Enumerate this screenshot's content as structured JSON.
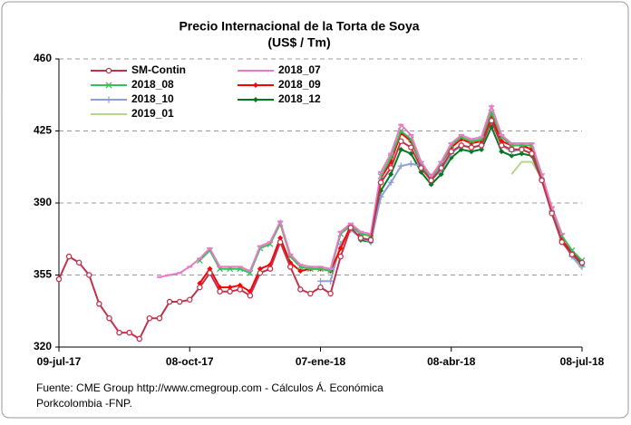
{
  "chart_data": {
    "type": "line",
    "title": "Precio Internacional de la Torta de Soya",
    "subtitle": "(US$ / Tm)",
    "source": [
      "Fuente: CME  Group http://www.cmegroup.com - Cálculos Á. Económica",
      "Porkcolombia  -FNP."
    ],
    "categories": [
      "09-jul-17",
      null,
      null,
      null,
      null,
      null,
      null,
      null,
      null,
      null,
      null,
      null,
      null,
      "08-oct-17",
      null,
      null,
      null,
      null,
      null,
      null,
      null,
      null,
      null,
      null,
      null,
      null,
      "07-ene-18",
      null,
      null,
      null,
      null,
      null,
      null,
      null,
      null,
      null,
      null,
      null,
      null,
      "08-abr-18",
      null,
      null,
      null,
      null,
      null,
      null,
      null,
      null,
      null,
      null,
      null,
      null,
      "08-jul-18"
    ],
    "ylim": [
      320,
      460
    ],
    "yticks": [
      320,
      355,
      390,
      425,
      460
    ],
    "grid": true,
    "legend": "top-left",
    "series": [
      {
        "name": "SM-Contin",
        "color": "#c0334a",
        "marker": "circle",
        "values": [
          353,
          364,
          361,
          355,
          341,
          334,
          327,
          327,
          324,
          334,
          334,
          342,
          342,
          343,
          349,
          356,
          347,
          347,
          348,
          345,
          356,
          358,
          371,
          359,
          348,
          346,
          349,
          346,
          364,
          378,
          373,
          372,
          400,
          407,
          420,
          417,
          407,
          401,
          407,
          415,
          418,
          417,
          418,
          430,
          418,
          416,
          416,
          414,
          401,
          385,
          371,
          365,
          361
        ]
      },
      {
        "name": "2018_07",
        "color": "#e77cc4",
        "marker": "dash",
        "values": [
          null,
          null,
          null,
          null,
          null,
          null,
          null,
          null,
          null,
          null,
          354,
          355,
          356,
          359,
          363,
          368,
          359,
          359,
          359,
          357,
          369,
          371,
          381,
          365,
          360,
          359,
          359,
          358,
          376,
          380,
          376,
          375,
          405,
          414,
          428,
          423,
          410,
          403,
          410,
          419,
          423,
          421,
          422,
          437,
          423,
          419,
          419,
          419,
          404,
          388,
          375,
          null,
          null
        ]
      },
      {
        "name": "2018_08",
        "color": "#33c15a",
        "marker": "x",
        "values": [
          null,
          null,
          null,
          null,
          null,
          null,
          null,
          null,
          null,
          null,
          null,
          null,
          null,
          null,
          362,
          367,
          358,
          358,
          358,
          356,
          368,
          370,
          380,
          364,
          359,
          358,
          358,
          357,
          375,
          379,
          375,
          374,
          403,
          412,
          425,
          421,
          409,
          402,
          409,
          418,
          422,
          420,
          421,
          434,
          422,
          418,
          418,
          418,
          403,
          387,
          374,
          367,
          362
        ]
      },
      {
        "name": "2018_09",
        "color": "#ff0000",
        "marker": "diamond",
        "values": [
          null,
          null,
          null,
          null,
          null,
          null,
          null,
          null,
          null,
          null,
          null,
          null,
          null,
          null,
          351,
          358,
          349,
          349,
          350,
          347,
          358,
          360,
          373,
          361,
          357,
          358,
          358,
          357,
          368,
          379,
          375,
          374,
          402,
          410,
          424,
          420,
          409,
          403,
          409,
          417,
          421,
          419,
          420,
          432,
          420,
          418,
          418,
          416,
          402,
          386,
          372,
          366,
          361
        ]
      },
      {
        "name": "2018_10",
        "color": "#8e9fd6",
        "marker": "plus",
        "values": [
          null,
          null,
          null,
          null,
          null,
          null,
          null,
          null,
          null,
          null,
          null,
          null,
          null,
          null,
          null,
          null,
          null,
          null,
          null,
          null,
          null,
          null,
          null,
          null,
          null,
          null,
          352,
          352,
          370,
          377,
          373,
          371,
          393,
          400,
          408,
          409,
          408,
          401,
          406,
          414,
          418,
          417,
          418,
          430,
          418,
          415,
          416,
          414,
          401,
          386,
          372,
          364,
          359
        ]
      },
      {
        "name": "2018_12",
        "color": "#007a1f",
        "marker": "diamond",
        "values": [
          null,
          null,
          null,
          null,
          null,
          null,
          null,
          null,
          null,
          null,
          null,
          null,
          null,
          null,
          null,
          null,
          null,
          null,
          null,
          null,
          null,
          null,
          null,
          null,
          null,
          null,
          null,
          null,
          null,
          null,
          372,
          371,
          396,
          404,
          416,
          414,
          405,
          399,
          404,
          412,
          416,
          415,
          416,
          427,
          415,
          413,
          414,
          413,
          401,
          386,
          372,
          365,
          360
        ]
      },
      {
        "name": "2019_01",
        "color": "#b6d68e",
        "marker": "none",
        "values": [
          null,
          null,
          null,
          null,
          null,
          null,
          null,
          null,
          null,
          null,
          null,
          null,
          null,
          null,
          null,
          null,
          null,
          null,
          null,
          null,
          null,
          null,
          null,
          null,
          null,
          null,
          null,
          null,
          null,
          null,
          null,
          null,
          null,
          null,
          null,
          null,
          null,
          null,
          null,
          null,
          null,
          null,
          null,
          null,
          null,
          404,
          410,
          410,
          402,
          388,
          372,
          364,
          358
        ]
      }
    ]
  }
}
